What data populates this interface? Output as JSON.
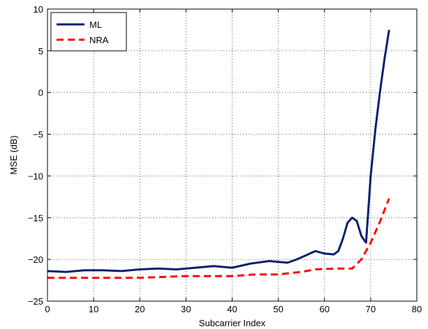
{
  "chart_data": {
    "type": "line",
    "title": "",
    "xlabel": "Subcarrier Index",
    "ylabel": "MSE (dB)",
    "xlim": [
      0,
      80
    ],
    "ylim": [
      -25,
      10
    ],
    "xticks": [
      0,
      10,
      20,
      30,
      40,
      50,
      60,
      70,
      80
    ],
    "yticks": [
      -25,
      -20,
      -15,
      -10,
      -5,
      0,
      5,
      10
    ],
    "xtick_labels": [
      "0",
      "10",
      "20",
      "30",
      "40",
      "50",
      "60",
      "70",
      "80"
    ],
    "ytick_labels": [
      "−25",
      "−20",
      "−15",
      "−10",
      "−5",
      "0",
      "5",
      "10"
    ],
    "grid": true,
    "legend_position": "top-left",
    "series": [
      {
        "name": "ML",
        "color": "#0b1f6e",
        "style": "solid",
        "x": [
          0,
          4,
          8,
          12,
          16,
          20,
          24,
          28,
          32,
          36,
          40,
          44,
          48,
          52,
          54,
          56,
          58,
          60,
          62,
          63,
          64,
          65,
          66,
          67,
          68,
          69,
          70,
          71,
          72,
          73,
          74
        ],
        "y": [
          -21.4,
          -21.5,
          -21.3,
          -21.3,
          -21.4,
          -21.2,
          -21.1,
          -21.2,
          -21.0,
          -20.8,
          -21.0,
          -20.5,
          -20.2,
          -20.4,
          -20.0,
          -19.5,
          -19.0,
          -19.3,
          -19.4,
          -19.0,
          -17.5,
          -15.6,
          -15.0,
          -15.4,
          -17.2,
          -18.0,
          -10.0,
          -4.5,
          0.0,
          4.0,
          7.5
        ]
      },
      {
        "name": "NRA",
        "color": "#ff0000",
        "style": "dashed",
        "x": [
          0,
          10,
          20,
          30,
          40,
          45,
          50,
          55,
          58,
          62,
          66,
          68,
          70,
          72,
          74
        ],
        "y": [
          -22.2,
          -22.2,
          -22.2,
          -22.0,
          -22.0,
          -21.8,
          -21.8,
          -21.5,
          -21.2,
          -21.1,
          -21.1,
          -20.0,
          -18.0,
          -15.5,
          -12.7
        ]
      }
    ]
  }
}
